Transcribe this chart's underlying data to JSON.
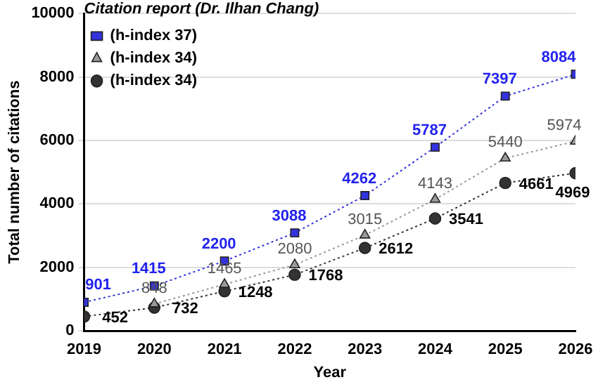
{
  "chart_data": {
    "type": "line",
    "xlabel": "Year",
    "ylabel": "Total number of citations",
    "legend_title": "Citation report (Dr. Ilhan Chang)",
    "x": [
      2019,
      2020,
      2021,
      2022,
      2023,
      2024,
      2025,
      2026
    ],
    "series": [
      {
        "name": "(h-index 37)",
        "color": "#3333dd",
        "marker": "square",
        "values": [
          901,
          1415,
          2200,
          3088,
          4262,
          5787,
          7397,
          8084
        ],
        "value_labels": [
          "901",
          "1415",
          "2200",
          "3088",
          "4262",
          "5787",
          "7397",
          "8084"
        ]
      },
      {
        "name": "(h-index 34)",
        "color": "#9a9a9a",
        "marker": "triangle",
        "values": [
          null,
          848,
          1465,
          2080,
          3015,
          4143,
          5440,
          5974
        ],
        "value_labels": [
          null,
          "848",
          "1465",
          "2080",
          "3015",
          "4143",
          "5440",
          "5974"
        ]
      },
      {
        "name": "(h-index 34)",
        "color": "#333333",
        "marker": "circle",
        "values": [
          452,
          732,
          1248,
          1768,
          2612,
          3541,
          4661,
          4969
        ],
        "value_labels": [
          "452",
          "732",
          "1248",
          "1768",
          "2612",
          "3541",
          "4661",
          "4969"
        ]
      }
    ],
    "xlim": [
      2019,
      2026
    ],
    "xticks": [
      2019,
      2020,
      2021,
      2022,
      2023,
      2024,
      2025,
      2026
    ],
    "ylim": [
      0,
      10000
    ],
    "yticks": [
      0,
      2000,
      4000,
      6000,
      8000,
      10000
    ],
    "grid": "y",
    "legend": "top left",
    "line_style": "dotted"
  }
}
